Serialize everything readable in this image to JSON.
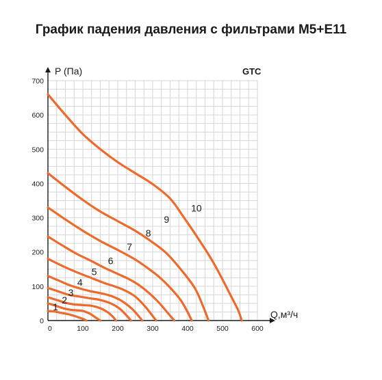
{
  "title": "График падения давления с фильтрами M5+E11",
  "chart_data": {
    "type": "line",
    "title": "График падения давления с фильтрами M5+E11",
    "brand": "GTC",
    "xlabel": "Q,м³/ч",
    "ylabel": "P (Па)",
    "xlim": [
      0,
      600
    ],
    "ylim": [
      0,
      700
    ],
    "xticks": [
      0,
      100,
      200,
      300,
      400,
      500,
      600
    ],
    "yticks": [
      0,
      100,
      200,
      300,
      400,
      500,
      600,
      700
    ],
    "grid": true,
    "line_color": "#ee6a2c",
    "series": [
      {
        "name": "1",
        "x": [
          0,
          20,
          40,
          60,
          80,
          100,
          110
        ],
        "y": [
          28,
          26,
          22,
          18,
          12,
          5,
          0
        ]
      },
      {
        "name": "2",
        "x": [
          0,
          20,
          40,
          60,
          80,
          100,
          120,
          135,
          150
        ],
        "y": [
          50,
          44,
          37,
          32,
          30,
          28,
          20,
          10,
          0
        ]
      },
      {
        "name": "3",
        "x": [
          0,
          25,
          50,
          75,
          100,
          125,
          150,
          170,
          185,
          195
        ],
        "y": [
          68,
          60,
          52,
          47,
          45,
          43,
          36,
          25,
          12,
          0
        ]
      },
      {
        "name": "4",
        "x": [
          0,
          30,
          60,
          90,
          120,
          150,
          180,
          205,
          225,
          238
        ],
        "y": [
          95,
          85,
          75,
          70,
          65,
          60,
          50,
          35,
          15,
          0
        ]
      },
      {
        "name": "5",
        "x": [
          0,
          30,
          60,
          90,
          120,
          150,
          180,
          210,
          240,
          258,
          270
        ],
        "y": [
          130,
          117,
          104,
          94,
          86,
          80,
          72,
          58,
          35,
          15,
          0
        ]
      },
      {
        "name": "6",
        "x": [
          0,
          40,
          80,
          120,
          160,
          190,
          220,
          250,
          275,
          295,
          310
        ],
        "y": [
          180,
          160,
          142,
          126,
          110,
          100,
          88,
          70,
          45,
          20,
          0
        ]
      },
      {
        "name": "7",
        "x": [
          0,
          40,
          80,
          120,
          160,
          200,
          230,
          260,
          290,
          320,
          345,
          362
        ],
        "y": [
          245,
          220,
          196,
          176,
          155,
          136,
          122,
          104,
          80,
          50,
          20,
          0
        ]
      },
      {
        "name": "8",
        "x": [
          0,
          50,
          100,
          150,
          200,
          250,
          290,
          320,
          350,
          380,
          400,
          412
        ],
        "y": [
          330,
          295,
          262,
          232,
          206,
          178,
          150,
          126,
          96,
          60,
          25,
          0
        ]
      },
      {
        "name": "9",
        "x": [
          0,
          50,
          100,
          150,
          200,
          250,
          300,
          340,
          380,
          420,
          445,
          460
        ],
        "y": [
          430,
          390,
          352,
          318,
          290,
          262,
          228,
          196,
          150,
          96,
          40,
          0
        ]
      },
      {
        "name": "10",
        "x": [
          0,
          50,
          100,
          150,
          200,
          250,
          300,
          350,
          390,
          430,
          470,
          500,
          525,
          545,
          555
        ],
        "y": [
          660,
          600,
          544,
          500,
          462,
          430,
          398,
          356,
          300,
          240,
          176,
          120,
          70,
          30,
          0
        ]
      }
    ],
    "series_labels": [
      {
        "text": "1",
        "x": 14,
        "y": 30
      },
      {
        "text": "2",
        "x": 40,
        "y": 50
      },
      {
        "text": "3",
        "x": 58,
        "y": 72
      },
      {
        "text": "4",
        "x": 84,
        "y": 102
      },
      {
        "text": "5",
        "x": 125,
        "y": 133
      },
      {
        "text": "6",
        "x": 172,
        "y": 165
      },
      {
        "text": "7",
        "x": 226,
        "y": 205
      },
      {
        "text": "8",
        "x": 280,
        "y": 245
      },
      {
        "text": "9",
        "x": 332,
        "y": 285
      },
      {
        "text": "10",
        "x": 410,
        "y": 318
      }
    ]
  }
}
